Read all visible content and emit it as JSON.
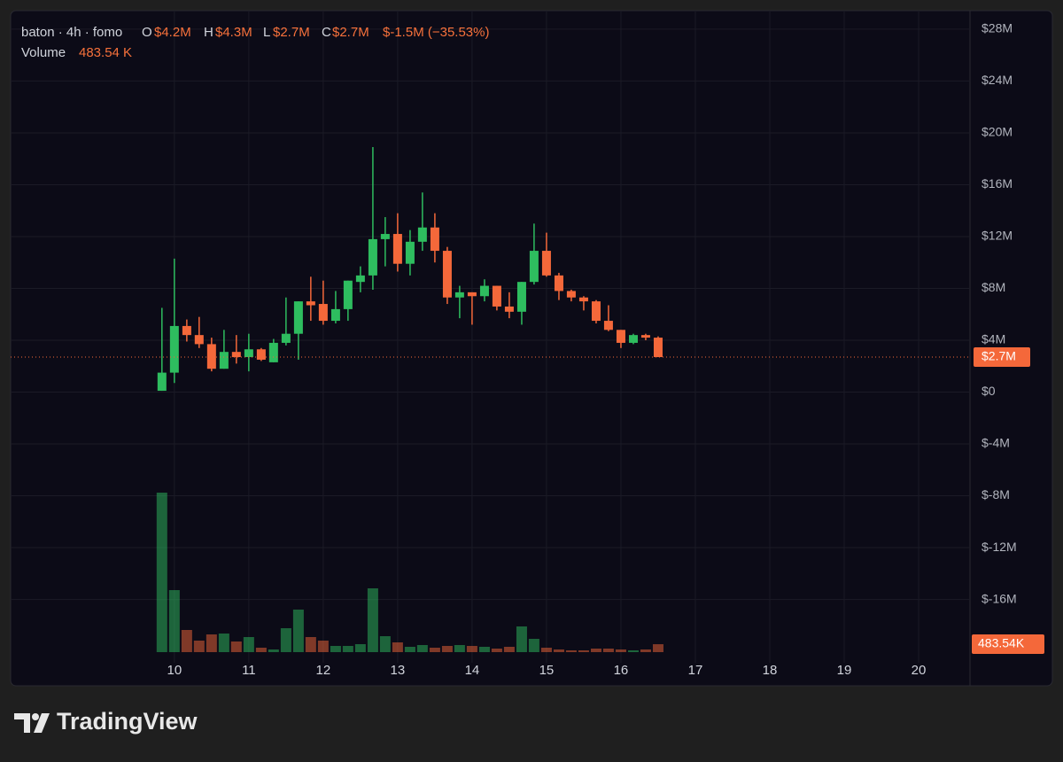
{
  "legend": {
    "symbol": "baton · 4h · fomo",
    "open_label": "O",
    "open": "$4.2M",
    "high_label": "H",
    "high": "$4.3M",
    "low_label": "L",
    "low": "$2.7M",
    "close_label": "C",
    "close": "$2.7M",
    "change": "$-1.5M (−35.53%)",
    "volume_label": "Volume",
    "volume": "483.54 K"
  },
  "chart_data": {
    "type": "candlestick",
    "x": [
      9.833,
      10,
      10.167,
      10.333,
      10.5,
      10.667,
      10.833,
      11,
      11.167,
      11.333,
      11.5,
      11.667,
      11.833,
      12,
      12.167,
      12.333,
      12.5,
      12.667,
      12.833,
      13,
      13.167,
      13.333,
      13.5,
      13.667,
      13.833,
      14,
      14.167,
      14.333,
      14.5,
      14.667,
      14.833,
      15,
      15.167,
      15.333,
      15.5,
      15.667,
      15.833,
      16,
      16.167,
      16.333,
      16.5
    ],
    "open": [
      0.1,
      1.5,
      5.1,
      4.4,
      3.7,
      1.8,
      3.1,
      2.7,
      3.3,
      2.3,
      3.8,
      4.5,
      7.0,
      6.8,
      5.5,
      6.4,
      8.5,
      9.0,
      11.8,
      12.2,
      9.9,
      11.6,
      12.7,
      10.9,
      7.3,
      7.7,
      7.4,
      8.2,
      6.6,
      6.2,
      8.5,
      10.9,
      9.0,
      7.8,
      7.3,
      7.0,
      5.5,
      4.8,
      3.8,
      4.4,
      4.2
    ],
    "high": [
      6.5,
      10.3,
      5.6,
      5.8,
      4.2,
      4.8,
      4.4,
      4.5,
      3.4,
      4.1,
      7.3,
      7.0,
      8.9,
      8.6,
      7.8,
      8.6,
      9.7,
      18.9,
      13.5,
      13.8,
      12.5,
      15.4,
      13.8,
      11.2,
      8.2,
      7.7,
      8.7,
      8.2,
      7.7,
      8.5,
      13.0,
      12.3,
      9.2,
      7.9,
      7.4,
      7.1,
      6.7,
      4.8,
      4.5,
      4.5,
      4.3
    ],
    "low": [
      0.1,
      0.7,
      3.9,
      3.4,
      1.6,
      1.8,
      2.2,
      1.6,
      2.4,
      2.3,
      3.6,
      2.5,
      5.5,
      5.2,
      5.3,
      5.5,
      7.7,
      7.9,
      9.7,
      9.3,
      9.0,
      10.9,
      10.0,
      6.8,
      5.7,
      5.2,
      7.0,
      6.3,
      5.7,
      5.2,
      8.3,
      8.9,
      7.1,
      7.0,
      6.3,
      5.3,
      4.7,
      3.4,
      3.7,
      4.0,
      2.7
    ],
    "close": [
      1.5,
      5.1,
      4.4,
      3.7,
      1.8,
      3.1,
      2.7,
      3.3,
      2.5,
      3.8,
      4.5,
      7.0,
      6.7,
      5.5,
      6.4,
      8.6,
      9.0,
      11.8,
      12.2,
      9.9,
      11.6,
      12.7,
      10.9,
      7.3,
      7.7,
      7.4,
      8.2,
      6.6,
      6.2,
      8.5,
      10.9,
      9.0,
      7.8,
      7.3,
      7.0,
      5.5,
      4.8,
      3.8,
      4.4,
      4.2,
      2.7
    ],
    "volume": [
      9720,
      3780,
      1350,
      702,
      1080,
      1134,
      648,
      918,
      270,
      162,
      1458,
      2592,
      918,
      702,
      378,
      378,
      486,
      3888,
      972,
      594,
      324,
      432,
      270,
      378,
      432,
      378,
      324,
      216,
      324,
      1566,
      810,
      270,
      162,
      108,
      108,
      216,
      216,
      162,
      108,
      162,
      483.54
    ],
    "up_color": "#2ebd5f",
    "down_color": "#f4683a",
    "ylim": [
      -22.66,
      29.43
    ],
    "yticks": [
      {
        "value": 28,
        "label": "$28M"
      },
      {
        "value": 24,
        "label": "$24M"
      },
      {
        "value": 20,
        "label": "$20M"
      },
      {
        "value": 16,
        "label": "$16M"
      },
      {
        "value": 12,
        "label": "$12M"
      },
      {
        "value": 8,
        "label": "$8M"
      },
      {
        "value": 4,
        "label": "$4M"
      },
      {
        "value": 0,
        "label": "$0"
      },
      {
        "value": -4,
        "label": "$-4M"
      },
      {
        "value": -8,
        "label": "$-8M"
      },
      {
        "value": -12,
        "label": "$-12M"
      },
      {
        "value": -16,
        "label": "$-16M"
      }
    ],
    "xlim": [
      7.8,
      20.69
    ],
    "xticks": [
      10,
      11,
      12,
      13,
      14,
      15,
      16,
      17,
      18,
      19,
      20
    ],
    "grid": true,
    "last_price": {
      "value": 2.7,
      "label": "$2.7M"
    },
    "last_volume": {
      "value": 483.54,
      "label": "483.54K"
    }
  },
  "branding": "TradingView"
}
